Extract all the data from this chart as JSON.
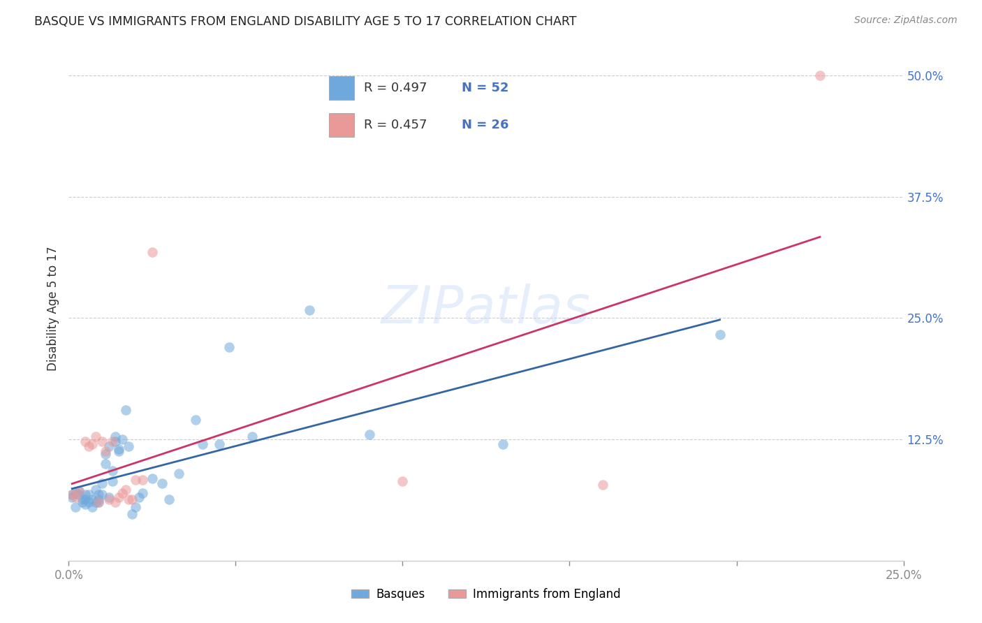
{
  "title": "BASQUE VS IMMIGRANTS FROM ENGLAND DISABILITY AGE 5 TO 17 CORRELATION CHART",
  "source": "Source: ZipAtlas.com",
  "ylabel": "Disability Age 5 to 17",
  "color_blue": "#6fa8dc",
  "color_pink": "#ea9999",
  "line_color_blue": "#3465a4",
  "line_color_pink": "#cc3366",
  "watermark": "ZIPatlas",
  "basque_x": [
    0.001,
    0.001,
    0.002,
    0.002,
    0.003,
    0.003,
    0.004,
    0.004,
    0.005,
    0.005,
    0.005,
    0.006,
    0.006,
    0.007,
    0.007,
    0.008,
    0.008,
    0.009,
    0.009,
    0.009,
    0.01,
    0.01,
    0.011,
    0.011,
    0.012,
    0.012,
    0.013,
    0.013,
    0.014,
    0.014,
    0.015,
    0.015,
    0.016,
    0.017,
    0.018,
    0.019,
    0.02,
    0.021,
    0.022,
    0.025,
    0.028,
    0.03,
    0.033,
    0.038,
    0.04,
    0.045,
    0.048,
    0.055,
    0.072,
    0.09,
    0.13,
    0.195
  ],
  "basque_y": [
    0.065,
    0.068,
    0.055,
    0.07,
    0.068,
    0.072,
    0.06,
    0.063,
    0.058,
    0.063,
    0.068,
    0.06,
    0.068,
    0.055,
    0.063,
    0.06,
    0.073,
    0.06,
    0.063,
    0.068,
    0.08,
    0.068,
    0.1,
    0.11,
    0.118,
    0.065,
    0.093,
    0.082,
    0.128,
    0.123,
    0.113,
    0.115,
    0.125,
    0.155,
    0.118,
    0.048,
    0.055,
    0.065,
    0.07,
    0.085,
    0.08,
    0.063,
    0.09,
    0.145,
    0.12,
    0.12,
    0.22,
    0.128,
    0.258,
    0.13,
    0.12,
    0.233
  ],
  "england_x": [
    0.001,
    0.002,
    0.003,
    0.005,
    0.006,
    0.007,
    0.008,
    0.009,
    0.01,
    0.011,
    0.012,
    0.013,
    0.014,
    0.015,
    0.016,
    0.017,
    0.018,
    0.019,
    0.02,
    0.022,
    0.025,
    0.1,
    0.16,
    0.225
  ],
  "england_y": [
    0.068,
    0.065,
    0.072,
    0.123,
    0.118,
    0.12,
    0.128,
    0.06,
    0.123,
    0.113,
    0.063,
    0.123,
    0.06,
    0.065,
    0.07,
    0.073,
    0.063,
    0.063,
    0.083,
    0.083,
    0.318,
    0.082,
    0.078,
    0.5
  ],
  "xlim": [
    0.0,
    0.25
  ],
  "ylim": [
    0.0,
    0.52
  ],
  "xtick_vals": [
    0.0,
    0.05,
    0.1,
    0.15,
    0.2,
    0.25
  ],
  "ytick_vals": [
    0.0,
    0.125,
    0.25,
    0.375,
    0.5
  ]
}
